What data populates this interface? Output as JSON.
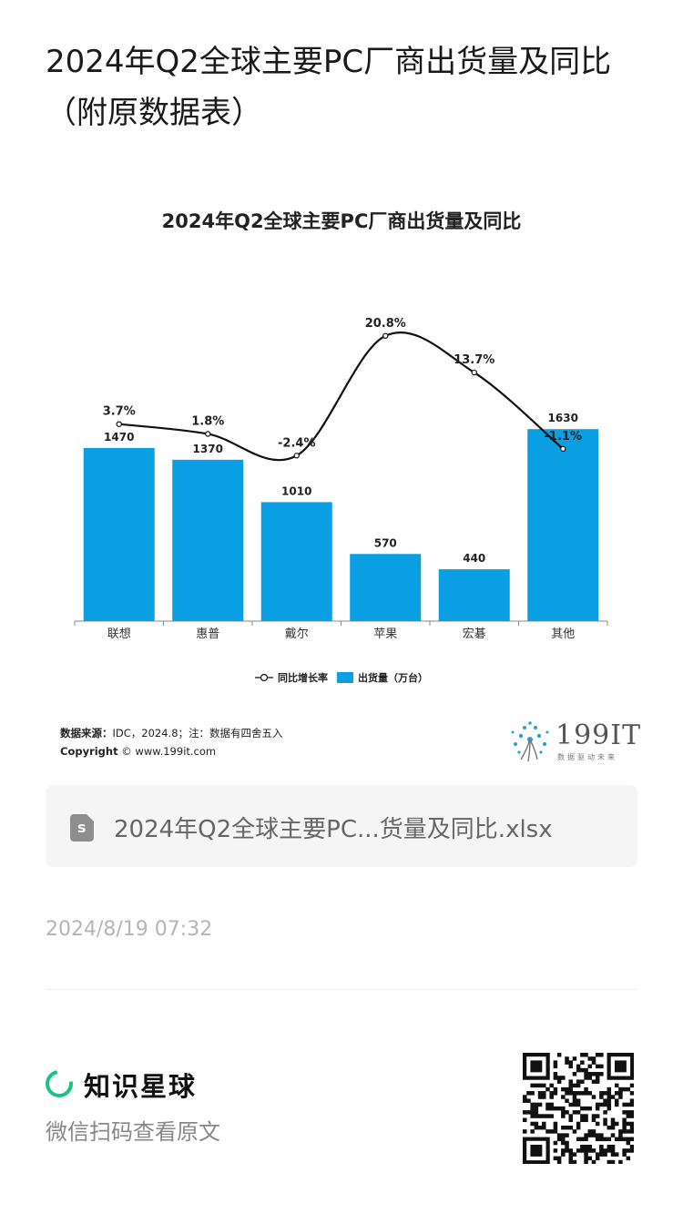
{
  "post": {
    "title": "2024年Q2全球主要PC厂商出货量及同比（附原数据表）",
    "file_name": "2024年Q2全球主要PC...货量及同比.xlsx",
    "file_icon": "spreadsheet-file-icon",
    "timestamp": "2024/8/19 07:32"
  },
  "chart_data": {
    "type": "bar",
    "title": "2024年Q2全球主要PC厂商出货量及同比",
    "categories": [
      "联想",
      "惠普",
      "戴尔",
      "苹果",
      "宏碁",
      "其他"
    ],
    "series": [
      {
        "name": "出货量（万台）",
        "kind": "bar",
        "color": "#0a9ee3",
        "values": [
          1470,
          1370,
          1010,
          570,
          440,
          1630
        ]
      },
      {
        "name": "同比增长率",
        "kind": "line",
        "color": "#111111",
        "values": [
          3.7,
          1.8,
          -2.4,
          20.8,
          13.7,
          -1.1
        ]
      }
    ],
    "bar_labels": [
      "1470",
      "1370",
      "1010",
      "570",
      "440",
      "1630"
    ],
    "line_labels": [
      "3.7%",
      "1.8%",
      "-2.4%",
      "20.8%",
      "13.7%",
      "-1.1%"
    ],
    "legend_line": "同比增长率",
    "legend_bar": "出货量（万台）",
    "legend_position": "bottom-center",
    "grid": false
  },
  "source": {
    "label": "数据来源：",
    "text": "IDC，2024.8；注：数据有四舍五入",
    "copyright_label": "Copyright",
    "copyright_text": "© www.199it.com"
  },
  "logo": {
    "number": "199IT",
    "tagline": "数据驱动未来"
  },
  "footer": {
    "brand": "知识星球",
    "brand_color": "#17c57f",
    "scan_hint": "微信扫码查看原文"
  }
}
